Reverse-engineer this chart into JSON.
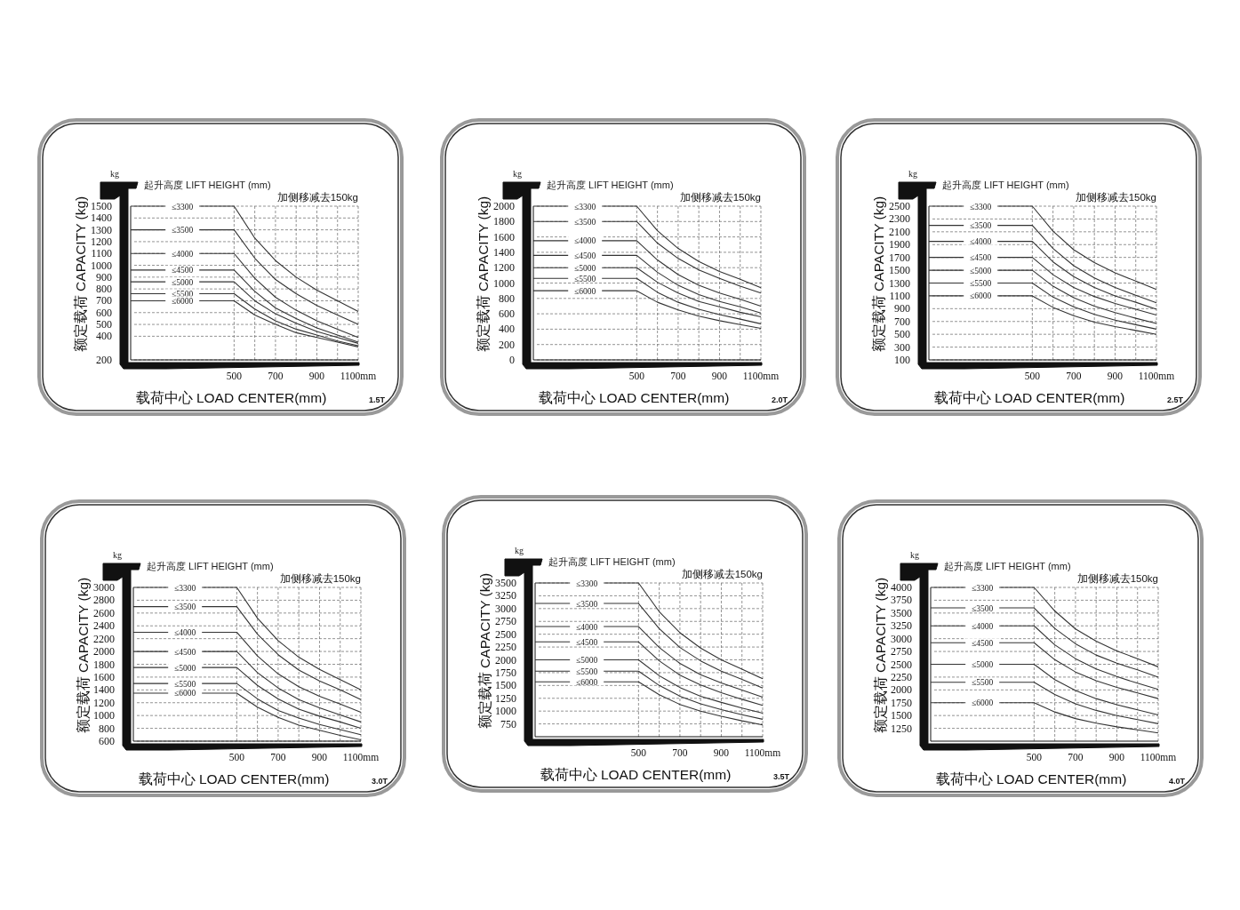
{
  "chart_data": [
    {
      "type": "line",
      "legend_title": "起升高度 LIFT HEIGHT (mm)",
      "ylabel": "额定载荷 CAPACITY (kg)",
      "xlabel": "载荷中心  LOAD CENTER(mm)",
      "annotations": [
        "kg",
        "加侧移减去150kg",
        "1.5T"
      ],
      "grid": true,
      "xlim": [
        0,
        1100
      ],
      "ylim": [
        200,
        1500
      ],
      "xticks": [
        500,
        {
          "value": 600,
          "label": null
        },
        700,
        {
          "value": 800,
          "label": null
        },
        900,
        {
          "value": 1000,
          "label": null
        },
        {
          "value": 1100,
          "label": "1100mm"
        }
      ],
      "yticks": [
        200,
        400,
        500,
        600,
        700,
        800,
        900,
        1000,
        1100,
        1200,
        1300,
        1400,
        1500
      ],
      "x": [
        0,
        500,
        600,
        700,
        800,
        900,
        1000,
        1100
      ],
      "series": [
        {
          "name": "≤3300",
          "color": "#333333",
          "values": [
            1500,
            1500,
            1230,
            1040,
            900,
            790,
            700,
            610
          ]
        },
        {
          "name": "≤3500",
          "color": "#333333",
          "values": [
            1300,
            1300,
            1060,
            880,
            760,
            660,
            580,
            500
          ]
        },
        {
          "name": "≤4000",
          "color": "#333333",
          "values": [
            1100,
            1100,
            890,
            730,
            620,
            530,
            460,
            390
          ]
        },
        {
          "name": "≤4500",
          "color": "#333333",
          "values": [
            960,
            960,
            780,
            640,
            550,
            470,
            410,
            350
          ]
        },
        {
          "name": "≤5000",
          "color": "#333333",
          "values": [
            860,
            860,
            700,
            590,
            510,
            440,
            390,
            340
          ]
        },
        {
          "name": "≤5500",
          "color": "#333333",
          "values": [
            760,
            760,
            630,
            530,
            460,
            410,
            360,
            320
          ]
        },
        {
          "name": "≤6000",
          "color": "#333333",
          "values": [
            700,
            700,
            580,
            500,
            430,
            390,
            350,
            310
          ]
        }
      ]
    },
    {
      "type": "line",
      "legend_title": "起升高度 LIFT HEIGHT (mm)",
      "ylabel": "额定载荷 CAPACITY (kg)",
      "xlabel": "载荷中心  LOAD CENTER(mm)",
      "annotations": [
        "kg",
        "加侧移减去150kg",
        "2.0T"
      ],
      "grid": true,
      "xlim": [
        0,
        1100
      ],
      "ylim": [
        0,
        2000
      ],
      "xticks": [
        500,
        {
          "value": 600,
          "label": null
        },
        700,
        {
          "value": 800,
          "label": null
        },
        900,
        {
          "value": 1000,
          "label": null
        },
        {
          "value": 1100,
          "label": "1100mm"
        }
      ],
      "yticks": [
        0,
        200,
        400,
        600,
        800,
        1000,
        1200,
        1400,
        1600,
        1800,
        2000
      ],
      "x": [
        0,
        500,
        600,
        700,
        800,
        900,
        1000,
        1100
      ],
      "series": [
        {
          "name": "≤3300",
          "color": "#333333",
          "values": [
            2000,
            2000,
            1680,
            1450,
            1280,
            1150,
            1050,
            940
          ]
        },
        {
          "name": "≤3500",
          "color": "#333333",
          "values": [
            1800,
            1800,
            1520,
            1320,
            1170,
            1060,
            960,
            870
          ]
        },
        {
          "name": "≤4000",
          "color": "#333333",
          "values": [
            1550,
            1550,
            1300,
            1110,
            970,
            870,
            790,
            700
          ]
        },
        {
          "name": "≤4500",
          "color": "#333333",
          "values": [
            1360,
            1360,
            1140,
            970,
            850,
            760,
            690,
            610
          ]
        },
        {
          "name": "≤5000",
          "color": "#333333",
          "values": [
            1200,
            1200,
            1010,
            870,
            760,
            690,
            620,
            560
          ]
        },
        {
          "name": "≤5500",
          "color": "#333333",
          "values": [
            1060,
            1060,
            880,
            750,
            660,
            590,
            530,
            470
          ]
        },
        {
          "name": "≤6000",
          "color": "#333333",
          "values": [
            900,
            900,
            750,
            650,
            570,
            510,
            460,
            410
          ]
        }
      ]
    },
    {
      "type": "line",
      "legend_title": "起升高度 LIFT HEIGHT (mm)",
      "ylabel": "额定载荷 CAPACITY (kg)",
      "xlabel": "载荷中心  LOAD CENTER(mm)",
      "annotations": [
        "kg",
        "加侧移减去150kg",
        "2.5T"
      ],
      "grid": true,
      "xlim": [
        0,
        1100
      ],
      "ylim": [
        100,
        2500
      ],
      "xticks": [
        500,
        {
          "value": 600,
          "label": null
        },
        700,
        {
          "value": 800,
          "label": null
        },
        900,
        {
          "value": 1000,
          "label": null
        },
        {
          "value": 1100,
          "label": "1100mm"
        }
      ],
      "yticks": [
        100,
        300,
        500,
        700,
        900,
        1100,
        1300,
        1500,
        1700,
        1900,
        2100,
        2300,
        2500
      ],
      "x": [
        0,
        500,
        600,
        700,
        800,
        900,
        1000,
        1100
      ],
      "series": [
        {
          "name": "≤3300",
          "color": "#333333",
          "values": [
            2500,
            2500,
            2110,
            1820,
            1620,
            1460,
            1330,
            1200
          ]
        },
        {
          "name": "≤3500",
          "color": "#333333",
          "values": [
            2200,
            2200,
            1840,
            1570,
            1380,
            1230,
            1110,
            990
          ]
        },
        {
          "name": "≤4000",
          "color": "#333333",
          "values": [
            1950,
            1950,
            1630,
            1400,
            1230,
            1100,
            1000,
            890
          ]
        },
        {
          "name": "≤4500",
          "color": "#333333",
          "values": [
            1700,
            1700,
            1430,
            1230,
            1090,
            980,
            890,
            800
          ]
        },
        {
          "name": "≤5000",
          "color": "#333333",
          "values": [
            1500,
            1500,
            1250,
            1070,
            940,
            840,
            750,
            670
          ]
        },
        {
          "name": "≤5500",
          "color": "#333333",
          "values": [
            1300,
            1300,
            1080,
            930,
            810,
            720,
            650,
            580
          ]
        },
        {
          "name": "≤6000",
          "color": "#333333",
          "values": [
            1100,
            1100,
            920,
            790,
            690,
            620,
            560,
            500
          ]
        }
      ]
    },
    {
      "type": "line",
      "legend_title": "起升高度 LIFT HEIGHT (mm)",
      "ylabel": "额定载荷 CAPACITY (kg)",
      "xlabel": "载荷中心  LOAD CENTER(mm)",
      "annotations": [
        "kg",
        "加侧移减去150kg",
        "3.0T"
      ],
      "grid": true,
      "xlim": [
        0,
        1100
      ],
      "ylim": [
        600,
        3000
      ],
      "xticks": [
        500,
        {
          "value": 600,
          "label": null
        },
        700,
        {
          "value": 800,
          "label": null
        },
        900,
        {
          "value": 1000,
          "label": null
        },
        {
          "value": 1100,
          "label": "1100mm"
        }
      ],
      "yticks": [
        600,
        800,
        1000,
        1200,
        1400,
        1600,
        1800,
        2000,
        2200,
        2400,
        2600,
        2800,
        3000
      ],
      "x": [
        0,
        500,
        600,
        700,
        800,
        900,
        1000,
        1100
      ],
      "series": [
        {
          "name": "≤3300",
          "color": "#333333",
          "values": [
            3000,
            3000,
            2520,
            2170,
            1910,
            1720,
            1560,
            1400
          ]
        },
        {
          "name": "≤3500",
          "color": "#333333",
          "values": [
            2700,
            2700,
            2270,
            1950,
            1710,
            1540,
            1400,
            1250
          ]
        },
        {
          "name": "≤4000",
          "color": "#333333",
          "values": [
            2300,
            2300,
            1930,
            1650,
            1450,
            1300,
            1180,
            1050
          ]
        },
        {
          "name": "≤4500",
          "color": "#333333",
          "values": [
            2000,
            2000,
            1670,
            1430,
            1250,
            1120,
            1010,
            900
          ]
        },
        {
          "name": "≤5000",
          "color": "#333333",
          "values": [
            1750,
            1750,
            1470,
            1260,
            1100,
            990,
            900,
            800
          ]
        },
        {
          "name": "≤5500",
          "color": "#333333",
          "values": [
            1500,
            1500,
            1260,
            1080,
            960,
            860,
            780,
            700
          ]
        },
        {
          "name": "≤6000",
          "color": "#333333",
          "values": [
            1350,
            1350,
            1130,
            970,
            850,
            770,
            690,
            620
          ]
        }
      ]
    },
    {
      "type": "line",
      "legend_title": "起升高度 LIFT HEIGHT (mm)",
      "ylabel": "额定载荷 CAPACITY (kg)",
      "xlabel": "载荷中心  LOAD CENTER(mm)",
      "annotations": [
        "kg",
        "加侧移减去150kg",
        "3.5T"
      ],
      "grid": true,
      "xlim": [
        0,
        1100
      ],
      "ylim": [
        500,
        3500
      ],
      "xticks": [
        500,
        {
          "value": 600,
          "label": null
        },
        700,
        {
          "value": 800,
          "label": null
        },
        900,
        {
          "value": 1000,
          "label": null
        },
        {
          "value": 1100,
          "label": "1100mm"
        }
      ],
      "yticks": [
        750,
        1000,
        1250,
        1500,
        1750,
        2000,
        2250,
        2500,
        2750,
        3000,
        3250,
        3500
      ],
      "x": [
        0,
        500,
        600,
        700,
        800,
        900,
        1000,
        1100
      ],
      "series": [
        {
          "name": "≤3300",
          "color": "#333333",
          "values": [
            3500,
            3500,
            2940,
            2530,
            2230,
            2000,
            1820,
            1630
          ]
        },
        {
          "name": "≤3500",
          "color": "#333333",
          "values": [
            3100,
            3100,
            2610,
            2240,
            1980,
            1780,
            1620,
            1450
          ]
        },
        {
          "name": "≤4000",
          "color": "#333333",
          "values": [
            2650,
            2650,
            2240,
            1930,
            1710,
            1550,
            1410,
            1270
          ]
        },
        {
          "name": "≤4500",
          "color": "#333333",
          "values": [
            2350,
            2350,
            1980,
            1700,
            1510,
            1360,
            1230,
            1110
          ]
        },
        {
          "name": "≤5000",
          "color": "#333333",
          "values": [
            2000,
            2000,
            1690,
            1460,
            1290,
            1170,
            1060,
            960
          ]
        },
        {
          "name": "≤5500",
          "color": "#333333",
          "values": [
            1780,
            1780,
            1500,
            1290,
            1140,
            1030,
            930,
            840
          ]
        },
        {
          "name": "≤6000",
          "color": "#333333",
          "values": [
            1570,
            1570,
            1320,
            1130,
            1000,
            900,
            810,
            730
          ]
        }
      ]
    },
    {
      "type": "line",
      "legend_title": "起升高度 LIFT HEIGHT (mm)",
      "ylabel": "额定载荷 CAPACITY (kg)",
      "xlabel": "载荷中心  LOAD CENTER(mm)",
      "annotations": [
        "kg",
        "加侧移减去150kg",
        "4.0T"
      ],
      "grid": true,
      "xlim": [
        0,
        1100
      ],
      "ylim": [
        1000,
        4000
      ],
      "xticks": [
        500,
        {
          "value": 600,
          "label": null
        },
        700,
        {
          "value": 800,
          "label": null
        },
        900,
        {
          "value": 1000,
          "label": null
        },
        {
          "value": 1100,
          "label": "1100mm"
        }
      ],
      "yticks": [
        1250,
        1500,
        1750,
        2000,
        2250,
        2500,
        2750,
        3000,
        3250,
        3500,
        3750,
        4000
      ],
      "x": [
        0,
        500,
        600,
        700,
        800,
        900,
        1000,
        1100
      ],
      "series": [
        {
          "name": "≤3300",
          "color": "#333333",
          "values": [
            4000,
            4000,
            3540,
            3190,
            2950,
            2760,
            2610,
            2450
          ]
        },
        {
          "name": "≤3500",
          "color": "#333333",
          "values": [
            3600,
            3600,
            3200,
            2900,
            2680,
            2520,
            2390,
            2250
          ]
        },
        {
          "name": "≤4000",
          "color": "#333333",
          "values": [
            3250,
            3250,
            2880,
            2610,
            2410,
            2260,
            2130,
            2010
          ]
        },
        {
          "name": "≤4500",
          "color": "#333333",
          "values": [
            2920,
            2920,
            2590,
            2350,
            2180,
            2050,
            1940,
            1830
          ]
        },
        {
          "name": "≤5000",
          "color": "#333333",
          "values": [
            2500,
            2500,
            2200,
            1990,
            1830,
            1710,
            1610,
            1510
          ]
        },
        {
          "name": "≤5500",
          "color": "#333333",
          "values": [
            2150,
            2150,
            1910,
            1730,
            1600,
            1500,
            1420,
            1340
          ]
        },
        {
          "name": "≤6000",
          "color": "#333333",
          "values": [
            1750,
            1750,
            1570,
            1440,
            1350,
            1280,
            1220,
            1160
          ]
        }
      ]
    }
  ]
}
